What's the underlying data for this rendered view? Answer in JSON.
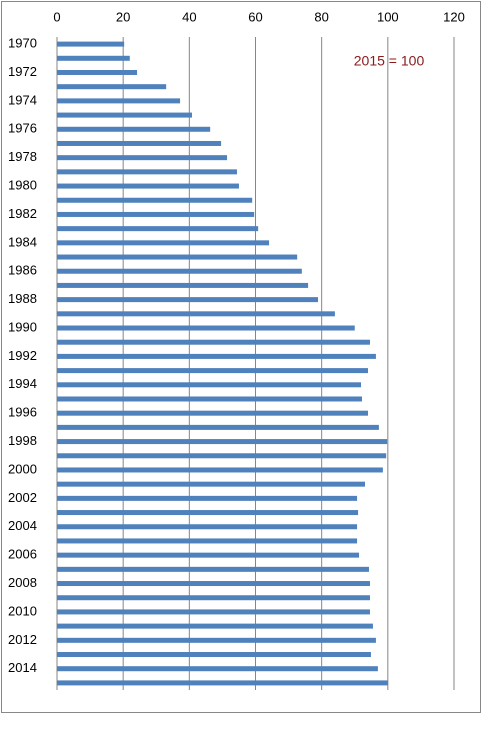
{
  "chart_data": {
    "type": "bar",
    "orientation": "horizontal",
    "annotation": "2015 = 100",
    "categories": [
      "1970",
      null,
      "1972",
      null,
      "1974",
      null,
      "1976",
      null,
      "1978",
      null,
      "1980",
      null,
      "1982",
      null,
      "1984",
      null,
      "1986",
      null,
      "1988",
      null,
      "1990",
      null,
      "1992",
      null,
      "1994",
      null,
      "1996",
      null,
      "1998",
      null,
      "2000",
      null,
      "2002",
      null,
      "2004",
      null,
      "2006",
      null,
      "2008",
      null,
      "2010",
      null,
      "2012",
      null,
      "2014",
      null
    ],
    "values": [
      20.3,
      22,
      24.2,
      33,
      37.2,
      40.8,
      46.3,
      49.6,
      51.4,
      54.4,
      55,
      59,
      59.6,
      60.8,
      64.1,
      72.6,
      74,
      75.9,
      78.9,
      84,
      90,
      94.6,
      96.4,
      94,
      91.9,
      92.2,
      94,
      97.3,
      99.8,
      99.5,
      98.5,
      93.1,
      90.7,
      91,
      90.7,
      90.7,
      91.3,
      94.3,
      94.6,
      94.6,
      94.6,
      95.5,
      96.4,
      94.9,
      97,
      100
    ],
    "color": "#4f81bd",
    "xlim": [
      0,
      120
    ],
    "xticks": [
      0,
      20,
      40,
      60,
      80,
      100,
      120
    ],
    "grid": true
  }
}
